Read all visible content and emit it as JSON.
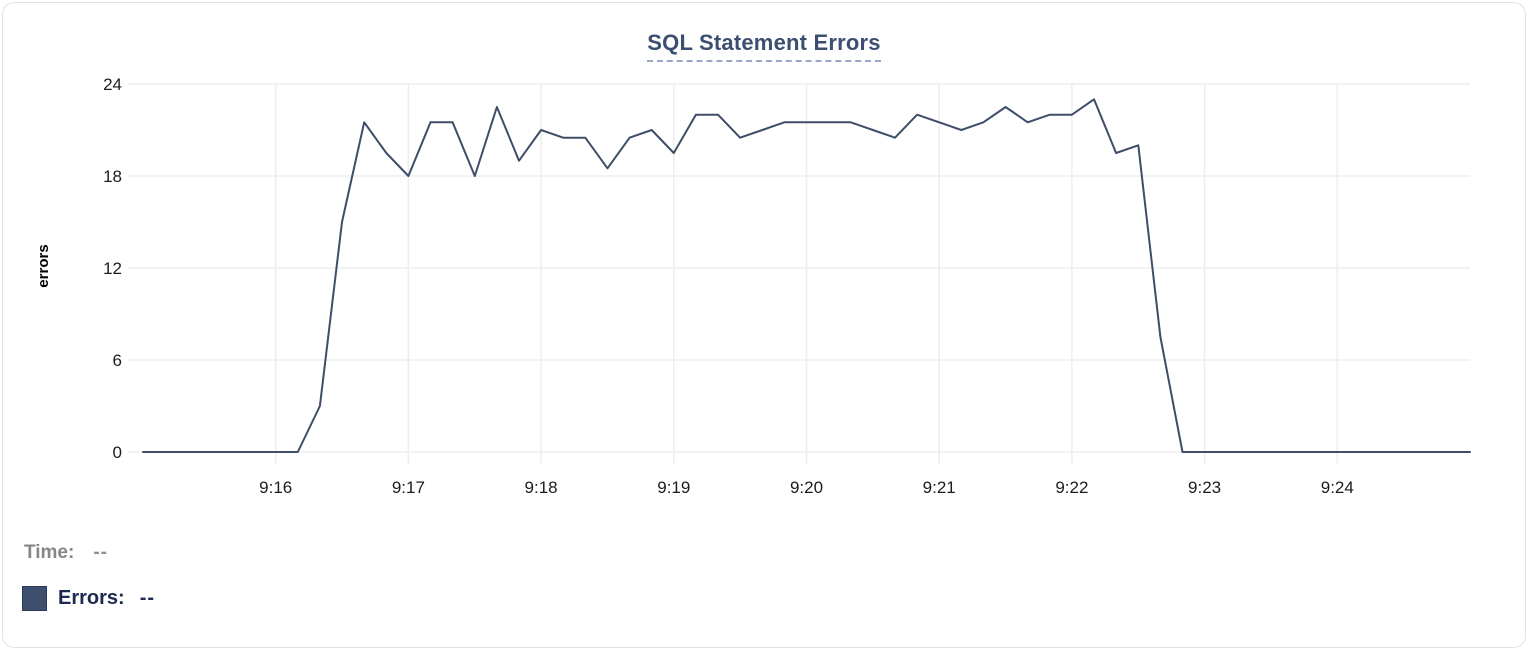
{
  "title": "SQL Statement Errors",
  "readout": {
    "time_label": "Time:",
    "time_value": "--",
    "errors_label": "Errors:",
    "errors_value": "--"
  },
  "colors": {
    "title": "#3c4e72",
    "title_dash": "#98a7c6",
    "line": "#3e4d68",
    "swatch": "#3e4f6e",
    "swatch_border": "#2a3a5e",
    "grid": "#ededee",
    "axis_text": "#1c1c1e",
    "muted": "#85858a",
    "muted_value": "#8e8e93",
    "errors_text": "#1d2a4f",
    "card_border": "#e3e3e6"
  },
  "chart_data": {
    "type": "line",
    "title": "SQL Statement Errors",
    "xlabel": "",
    "ylabel": "errors",
    "ylim": [
      0,
      24
    ],
    "y_ticks": [
      0,
      6,
      12,
      18,
      24
    ],
    "x_tick_labels": [
      "9:16",
      "9:17",
      "9:18",
      "9:19",
      "9:20",
      "9:21",
      "9:22",
      "9:23",
      "9:24"
    ],
    "x_tick_seconds": [
      60,
      120,
      180,
      240,
      300,
      360,
      420,
      480,
      540
    ],
    "x_domain_seconds": [
      0,
      600
    ],
    "start_time": "9:15:00",
    "interval_seconds": 10,
    "grid": true,
    "legend_position": "bottom-left",
    "series": [
      {
        "name": "Errors",
        "values": [
          0,
          0,
          0,
          0,
          0,
          0,
          0,
          0,
          3,
          15,
          21.5,
          19.5,
          18,
          21.5,
          21.5,
          18,
          22.5,
          19,
          21,
          20.5,
          20.5,
          18.5,
          20.5,
          21,
          19.5,
          22,
          22,
          20.5,
          21,
          21.5,
          21.5,
          21.5,
          21.5,
          21,
          20.5,
          22,
          21.5,
          21,
          21.5,
          22.5,
          21.5,
          22,
          22,
          23,
          19.5,
          20,
          7.5,
          0,
          0,
          0,
          0,
          0,
          0,
          0,
          0,
          0,
          0,
          0,
          0,
          0,
          0
        ]
      }
    ]
  }
}
